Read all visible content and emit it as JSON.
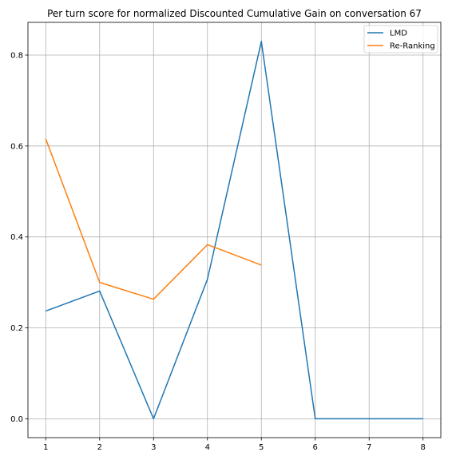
{
  "chart_data": {
    "type": "line",
    "title": "Per turn score for normalized Discounted Cumulative Gain on conversation 67",
    "xlabel": "",
    "ylabel": "",
    "x_ticks": [
      1,
      2,
      3,
      4,
      5,
      6,
      7,
      8
    ],
    "y_ticks": [
      "0.0",
      "0.2",
      "0.4",
      "0.6",
      "0.8"
    ],
    "xlim": [
      0.67,
      8.33
    ],
    "ylim": [
      -0.0415,
      0.872
    ],
    "grid": true,
    "legend_position": "top-right",
    "series": [
      {
        "name": "LMD",
        "color": "#1f77b4",
        "x": [
          1,
          2,
          3,
          4,
          5,
          6,
          7,
          8
        ],
        "values": [
          0.237,
          0.281,
          0.0,
          0.307,
          0.83,
          0.0,
          0.0,
          0.0
        ]
      },
      {
        "name": "Re-Ranking",
        "color": "#ff7f0e",
        "x": [
          1,
          2,
          3,
          4,
          5
        ],
        "values": [
          0.616,
          0.3,
          0.263,
          0.383,
          0.338
        ]
      }
    ]
  }
}
